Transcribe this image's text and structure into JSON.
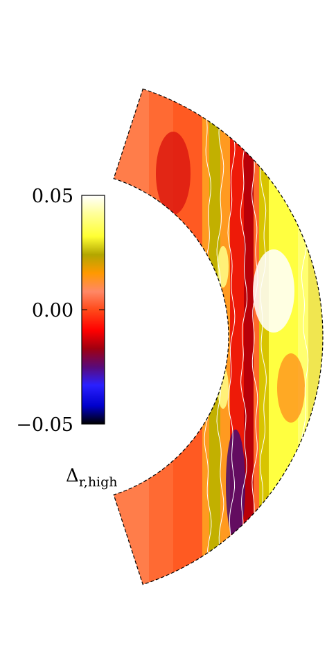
{
  "figure": {
    "colorbar": {
      "ticks": [
        {
          "value": 0.05,
          "label": "0.05"
        },
        {
          "value": 0.0,
          "label": "0.00"
        },
        {
          "value": -0.05,
          "label": "−0.05"
        }
      ],
      "range": [
        -0.05,
        0.05
      ],
      "colormap": [
        "#000000",
        "#0000ff",
        "#5a0a78",
        "#cc0000",
        "#ff2200",
        "#ff7733",
        "#ff9900",
        "#b3a800",
        "#ffff44",
        "#ffffff"
      ],
      "label_main": "Δ",
      "label_sub": "r,high"
    },
    "colors": {
      "contour": "#ffffff",
      "outline": "#000000"
    }
  }
}
